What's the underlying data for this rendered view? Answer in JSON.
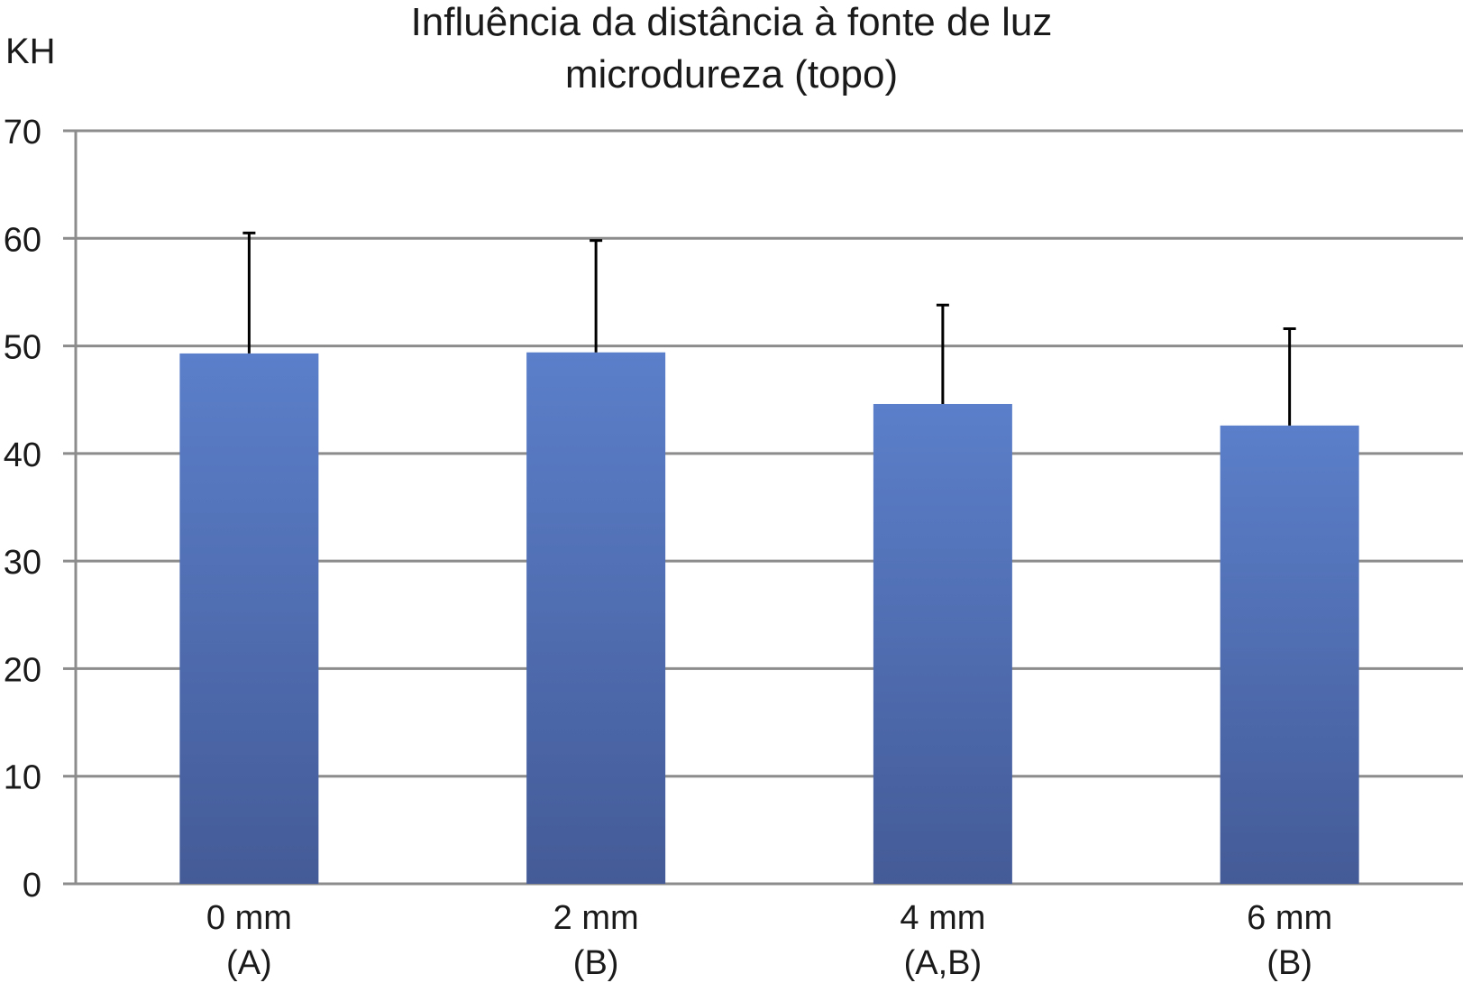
{
  "chart_data": {
    "type": "bar",
    "title": "Influência da distância à fonte de luz",
    "subtitle": "microdureza (topo)",
    "ylabel": "KH",
    "xlabel": "",
    "categories": [
      "0 mm",
      "2 mm",
      "4 mm",
      "6 mm"
    ],
    "category_groups": [
      "(A)",
      "(B)",
      "(A,B)",
      "(B)"
    ],
    "values": [
      49.3,
      49.4,
      44.6,
      42.6
    ],
    "error_upper": [
      60.5,
      59.8,
      53.8,
      51.6
    ],
    "ylim": [
      0,
      70
    ],
    "yticks": [
      0,
      10,
      20,
      30,
      40,
      50,
      60,
      70
    ],
    "grid": true,
    "legend": "none",
    "colors": {
      "bar_top": "#5b7fca",
      "bar_bottom": "#445b97",
      "grid": "#8c8c8c",
      "error_bar": "#000000"
    }
  }
}
